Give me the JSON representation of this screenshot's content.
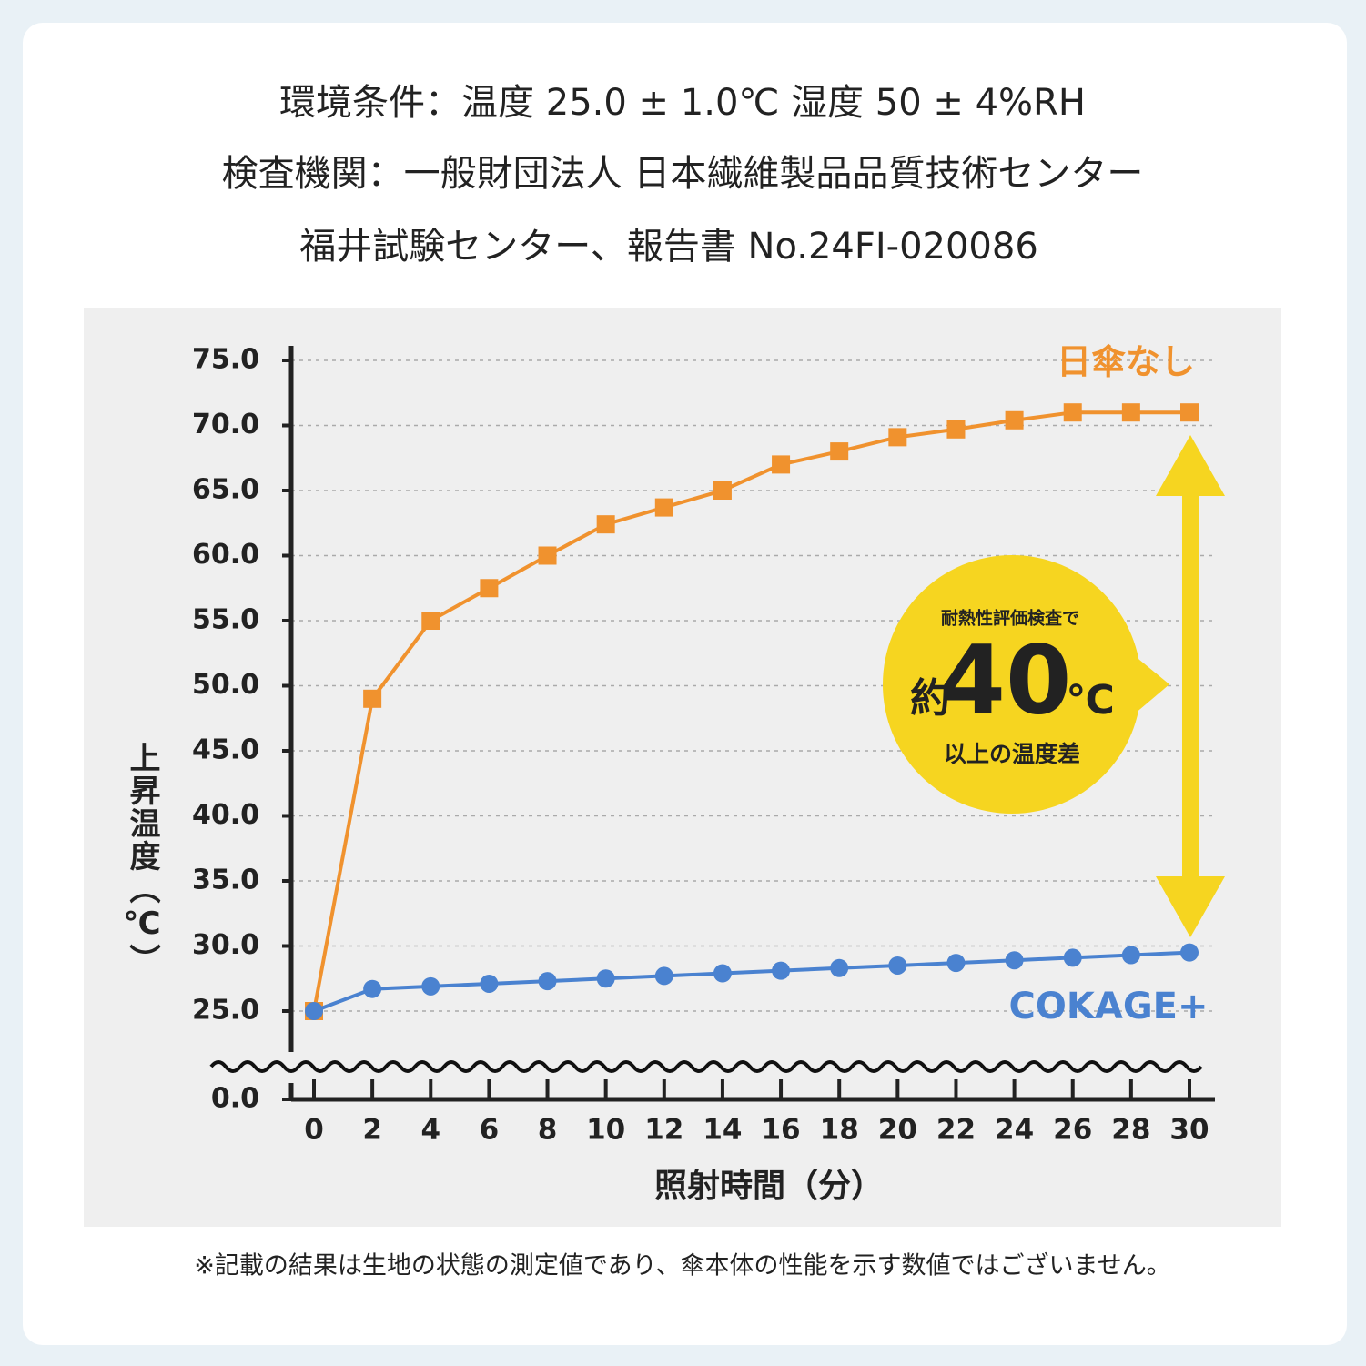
{
  "header": {
    "lines": [
      "環境条件：温度 25.0 ± 1.0℃ 湿度 50 ± 4%RH",
      "検査機関：一般財団法人 日本繊維製品品質技術センター",
      "福井試験センター、報告書 No.24FI-020086"
    ]
  },
  "chart_data": {
    "type": "line",
    "x": [
      0,
      2,
      4,
      6,
      8,
      10,
      12,
      14,
      16,
      18,
      20,
      22,
      24,
      26,
      28,
      30
    ],
    "xlim": [
      0,
      30
    ],
    "xticks": [
      0,
      2,
      4,
      6,
      8,
      10,
      12,
      14,
      16,
      18,
      20,
      22,
      24,
      26,
      28,
      30
    ],
    "ylim": [
      25,
      75
    ],
    "yticks": [
      {
        "value": 25,
        "label": "25.0"
      },
      {
        "value": 30,
        "label": "30.0"
      },
      {
        "value": 35,
        "label": "35.0"
      },
      {
        "value": 40,
        "label": "40.0"
      },
      {
        "value": 45,
        "label": "45.0"
      },
      {
        "value": 50,
        "label": "50.0"
      },
      {
        "value": 55,
        "label": "55.0"
      },
      {
        "value": 60,
        "label": "60.0"
      },
      {
        "value": 65,
        "label": "65.0"
      },
      {
        "value": 70,
        "label": "70.0"
      },
      {
        "value": 75,
        "label": "75.0"
      }
    ],
    "axis_break_tick": {
      "value": 0,
      "label": "0.0"
    },
    "grid": true,
    "x_label": "照射時間（分）",
    "y_label": "上昇温度（℃）",
    "series": [
      {
        "name": "日傘なし",
        "color": "#f0922e",
        "marker": "square",
        "values": [
          25,
          49,
          55,
          57.5,
          60,
          62.4,
          63.7,
          65,
          67,
          68,
          69.1,
          69.7,
          70.4,
          71,
          71,
          71
        ]
      },
      {
        "name": "COKAGE+",
        "color": "#4a82d0",
        "marker": "circle",
        "values": [
          25,
          26.7,
          26.9,
          27.1,
          27.3,
          27.5,
          27.7,
          27.9,
          28.1,
          28.3,
          28.5,
          28.7,
          28.9,
          29.1,
          29.3,
          29.5
        ]
      }
    ],
    "annotation": {
      "top": "耐熱性評価検査で",
      "prefix": "約",
      "number": "40",
      "unit": "℃",
      "bottom": "以上の温度差"
    }
  },
  "footer": {
    "note": "※記載の結果は生地の状態の測定値であり、傘本体の性能を示す数値ではございません。"
  }
}
